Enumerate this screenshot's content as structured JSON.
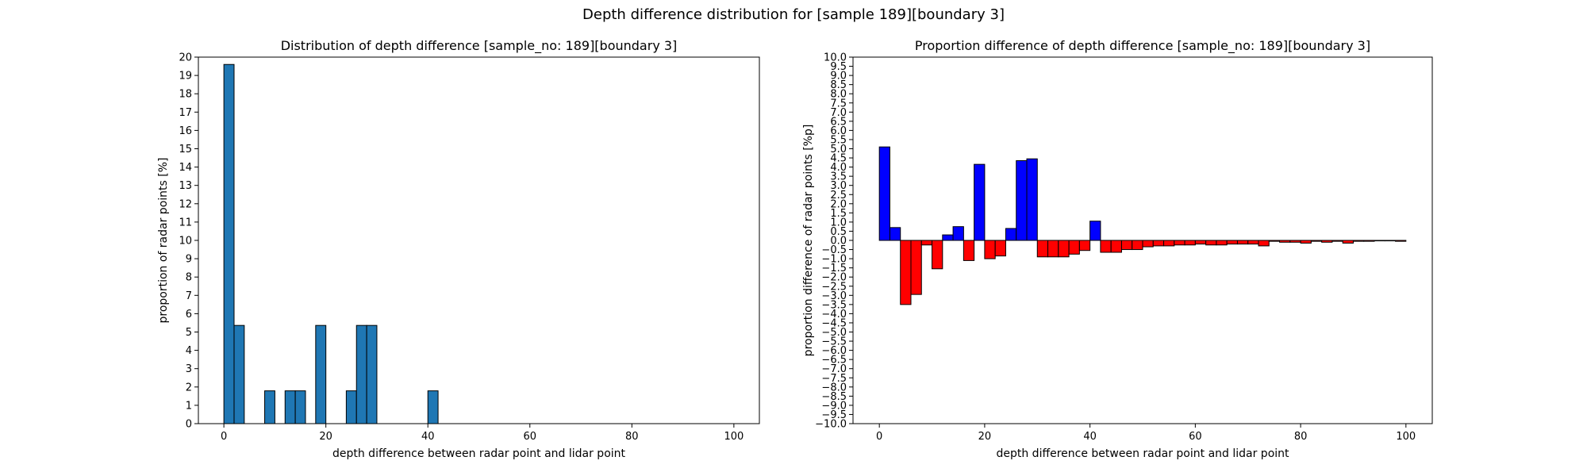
{
  "figure": {
    "suptitle": "Depth difference distribution for [sample 189][boundary 3]"
  },
  "chart_data": [
    {
      "type": "bar",
      "title": "Distribution of depth difference [sample_no: 189][boundary 3]",
      "xlabel": "depth difference between radar point and lidar point",
      "ylabel": "proportion of radar points [%]",
      "xlim": [
        -5,
        105
      ],
      "ylim": [
        0,
        20
      ],
      "x_ticks": [
        0,
        20,
        40,
        60,
        80,
        100
      ],
      "y_ticks": [
        0,
        1,
        2,
        3,
        4,
        5,
        6,
        7,
        8,
        9,
        10,
        11,
        12,
        13,
        14,
        15,
        16,
        17,
        18,
        19,
        20
      ],
      "bin_width": 2,
      "bin_starts": [
        0,
        2,
        4,
        6,
        8,
        10,
        12,
        14,
        16,
        18,
        20,
        22,
        24,
        26,
        28,
        30,
        32,
        34,
        36,
        38,
        40,
        42,
        44,
        46,
        48,
        50,
        52,
        54,
        56,
        58,
        60,
        62,
        64,
        66,
        68,
        70,
        72,
        74,
        76,
        78,
        80,
        82,
        84,
        86,
        88,
        90,
        92,
        94,
        96,
        98
      ],
      "values": [
        19.6,
        5.36,
        0,
        0,
        1.79,
        0,
        1.79,
        1.79,
        0,
        5.36,
        0,
        0,
        1.79,
        5.36,
        5.36,
        0,
        0,
        0,
        0,
        0,
        1.79,
        0,
        0,
        0,
        0,
        0,
        0,
        0,
        0,
        0,
        0,
        0,
        0,
        0,
        0,
        0,
        0,
        0,
        0,
        0,
        0,
        0,
        0,
        0,
        0,
        0,
        0,
        0,
        0,
        0
      ],
      "bar_color": "#1f77b4",
      "edge_color": "#000000"
    },
    {
      "type": "bar",
      "title": "Proportion difference of depth difference [sample_no: 189][boundary 3]",
      "xlabel": "depth difference between radar point and lidar point",
      "ylabel": "proportion difference of radar points [%p]",
      "xlim": [
        -5,
        105
      ],
      "ylim": [
        -10,
        10
      ],
      "x_ticks": [
        0,
        20,
        40,
        60,
        80,
        100
      ],
      "y_ticks": [
        -10.0,
        -9.5,
        -9.0,
        -8.5,
        -8.0,
        -7.5,
        -7.0,
        -6.5,
        -6.0,
        -5.5,
        -5.0,
        -4.5,
        -4.0,
        -3.5,
        -3.0,
        -2.5,
        -2.0,
        -1.5,
        -1.0,
        -0.5,
        0.0,
        0.5,
        1.0,
        1.5,
        2.0,
        2.5,
        3.0,
        3.5,
        4.0,
        4.5,
        5.0,
        5.5,
        6.0,
        6.5,
        7.0,
        7.5,
        8.0,
        8.5,
        9.0,
        9.5,
        10.0
      ],
      "bin_width": 2,
      "bin_starts": [
        0,
        2,
        4,
        6,
        8,
        10,
        12,
        14,
        16,
        18,
        20,
        22,
        24,
        26,
        28,
        30,
        32,
        34,
        36,
        38,
        40,
        42,
        44,
        46,
        48,
        50,
        52,
        54,
        56,
        58,
        60,
        62,
        64,
        66,
        68,
        70,
        72,
        74,
        76,
        78,
        80,
        82,
        84,
        86,
        88,
        90,
        92,
        94,
        96,
        98
      ],
      "values": [
        5.1,
        0.7,
        -3.5,
        -2.95,
        -0.25,
        -1.55,
        0.3,
        0.75,
        -1.1,
        4.15,
        -1.0,
        -0.85,
        0.65,
        4.35,
        4.45,
        -0.9,
        -0.9,
        -0.9,
        -0.75,
        -0.55,
        1.05,
        -0.65,
        -0.65,
        -0.5,
        -0.5,
        -0.35,
        -0.3,
        -0.3,
        -0.25,
        -0.25,
        -0.2,
        -0.25,
        -0.25,
        -0.2,
        -0.2,
        -0.2,
        -0.3,
        -0.05,
        -0.1,
        -0.1,
        -0.15,
        -0.05,
        -0.1,
        -0.05,
        -0.15,
        -0.05,
        -0.05,
        -0.02,
        -0.02,
        -0.05
      ],
      "positive_color": "#0000ff",
      "negative_color": "#ff0000",
      "edge_color": "#000000"
    }
  ]
}
